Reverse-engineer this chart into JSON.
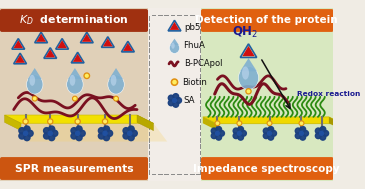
{
  "bg_color": "#f0ece4",
  "left_bg": "#e8dac8",
  "right_bg": "#dce8c8",
  "middle_bg": "#f0ece4",
  "left_title": "$K_D$ determination",
  "left_title_bg": "#a03010",
  "left_bottom": "SPR measurements",
  "left_bottom_bg": "#cc5510",
  "right_title": "Detection of the protein",
  "right_title_bg": "#e06010",
  "right_bottom": "Impedance spectroscopy",
  "right_bottom_bg": "#e06010",
  "title_color": "white",
  "divider_color": "#909090",
  "yellow_platform": "#f0e000",
  "yellow_platform2": "#e0cc00",
  "grass_color": "#2a8a10",
  "protein_dark": "#7a1020",
  "protein_blue": "#5080b0",
  "protein_blue2": "#80b0d0",
  "flower_blue": "#1a4080",
  "flower_mid": "#2050a0",
  "orange_dot": "#e09010",
  "pb5_red": "#d01010",
  "pb5_blue_outline": "#2060a0",
  "qh2_color": "#1a1a90",
  "redox_color": "#1a1a90",
  "legend_labels": [
    "pb5",
    "FhuA",
    "B-PCApol",
    "Biotin",
    "SA"
  ]
}
